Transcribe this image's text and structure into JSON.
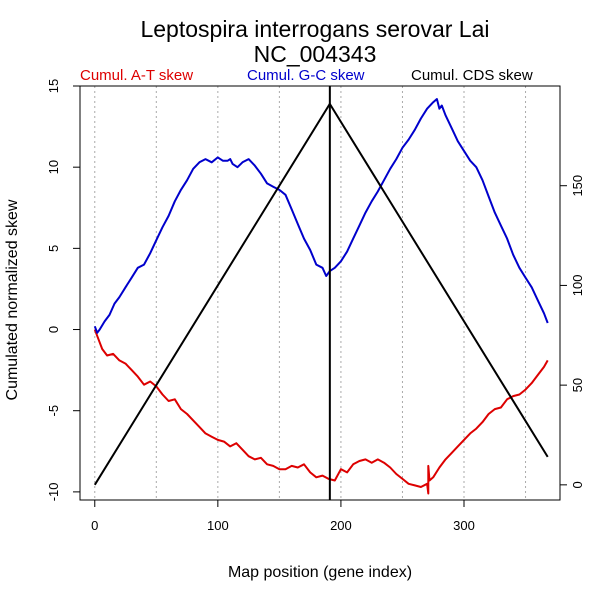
{
  "chart_data": {
    "type": "line",
    "title": "Leptospira interrogans serovar Lai",
    "subtitle": "NC_004343",
    "xlabel": "Map position (gene index)",
    "ylabel": "Cumulated normalized skew",
    "xlim": [
      -12,
      378
    ],
    "ylim": [
      -10.5,
      15
    ],
    "y2lim": [
      -7.6,
      200
    ],
    "x_ticks": [
      0,
      100,
      200,
      300
    ],
    "y_ticks": [
      -10,
      -5,
      0,
      5,
      10,
      15
    ],
    "y2_ticks": [
      0,
      50,
      100,
      150
    ],
    "grid_x": [
      0,
      50,
      100,
      150,
      200,
      250,
      300,
      350
    ],
    "vline_x": 191,
    "colors": {
      "at": "#dd0000",
      "gc": "#0000cc",
      "cds": "#000000",
      "grid": "#aaaaaa"
    },
    "legend": [
      {
        "name": "Cumul. A-T skew",
        "color": "#dd0000"
      },
      {
        "name": "Cumul. G-C skew",
        "color": "#0000cc"
      },
      {
        "name": "Cumul. CDS skew",
        "color": "#000000"
      }
    ],
    "series": [
      {
        "name": "Cumul. A-T skew",
        "axis": "left",
        "x": [
          0,
          3,
          6,
          10,
          15,
          20,
          25,
          30,
          35,
          40,
          45,
          50,
          55,
          60,
          65,
          70,
          75,
          80,
          85,
          90,
          95,
          100,
          105,
          110,
          115,
          120,
          125,
          130,
          135,
          140,
          145,
          150,
          155,
          160,
          165,
          170,
          175,
          180,
          185,
          190,
          195,
          200,
          205,
          210,
          215,
          220,
          225,
          230,
          235,
          240,
          245,
          250,
          255,
          260,
          265,
          270,
          271,
          271,
          272,
          275,
          280,
          285,
          290,
          295,
          300,
          305,
          310,
          315,
          320,
          325,
          330,
          335,
          340,
          345,
          350,
          355,
          360,
          365,
          368
        ],
        "values": [
          0.0,
          -0.6,
          -1.2,
          -1.6,
          -1.5,
          -1.9,
          -2.1,
          -2.5,
          -2.9,
          -3.4,
          -3.2,
          -3.5,
          -4.0,
          -4.4,
          -4.3,
          -4.9,
          -5.2,
          -5.6,
          -6.0,
          -6.4,
          -6.6,
          -6.8,
          -6.9,
          -7.2,
          -7.0,
          -7.4,
          -7.8,
          -8.0,
          -7.9,
          -8.3,
          -8.4,
          -8.6,
          -8.6,
          -8.4,
          -8.5,
          -8.3,
          -8.8,
          -9.1,
          -9.0,
          -9.2,
          -9.3,
          -8.6,
          -8.8,
          -8.3,
          -8.1,
          -8.0,
          -8.2,
          -8.0,
          -8.2,
          -8.5,
          -8.9,
          -9.2,
          -9.5,
          -9.6,
          -9.7,
          -9.5,
          -10.1,
          -8.4,
          -9.3,
          -9.1,
          -8.5,
          -8.0,
          -7.6,
          -7.2,
          -6.8,
          -6.4,
          -6.1,
          -5.7,
          -5.2,
          -4.9,
          -4.8,
          -4.3,
          -4.1,
          -4.0,
          -3.7,
          -3.3,
          -2.8,
          -2.3,
          -1.9
        ]
      },
      {
        "name": "Cumul. G-C skew",
        "axis": "left",
        "x": [
          0,
          2,
          4,
          8,
          12,
          16,
          20,
          25,
          30,
          35,
          40,
          45,
          50,
          55,
          60,
          65,
          70,
          75,
          80,
          85,
          90,
          95,
          100,
          104,
          108,
          110,
          112,
          116,
          120,
          125,
          130,
          135,
          140,
          145,
          150,
          155,
          160,
          165,
          170,
          175,
          180,
          185,
          188,
          191,
          195,
          200,
          205,
          210,
          215,
          220,
          225,
          230,
          235,
          240,
          245,
          250,
          255,
          260,
          265,
          270,
          275,
          278,
          280,
          282,
          285,
          290,
          295,
          300,
          305,
          310,
          315,
          320,
          325,
          330,
          335,
          340,
          345,
          350,
          355,
          360,
          365,
          368
        ],
        "values": [
          0.2,
          -0.2,
          0.0,
          0.5,
          0.9,
          1.6,
          2.0,
          2.6,
          3.2,
          3.8,
          4.0,
          4.7,
          5.5,
          6.3,
          7.0,
          7.9,
          8.6,
          9.2,
          9.9,
          10.3,
          10.5,
          10.3,
          10.6,
          10.4,
          10.4,
          10.5,
          10.2,
          10.0,
          10.3,
          10.5,
          10.1,
          9.6,
          9.0,
          8.8,
          8.6,
          8.3,
          7.4,
          6.5,
          5.6,
          4.9,
          4.0,
          3.8,
          3.3,
          3.6,
          3.8,
          4.2,
          4.8,
          5.6,
          6.4,
          7.2,
          7.9,
          8.5,
          9.2,
          9.9,
          10.5,
          11.2,
          11.7,
          12.3,
          13.0,
          13.6,
          14.0,
          14.2,
          13.6,
          13.8,
          13.2,
          12.4,
          11.6,
          11.0,
          10.4,
          10.0,
          9.2,
          8.2,
          7.2,
          6.4,
          5.6,
          4.6,
          3.8,
          3.2,
          2.6,
          1.8,
          1.0,
          0.4
        ]
      },
      {
        "name": "Cumul. CDS skew",
        "axis": "right",
        "x": [
          0,
          191,
          368
        ],
        "values": [
          0,
          191,
          14
        ]
      }
    ]
  }
}
